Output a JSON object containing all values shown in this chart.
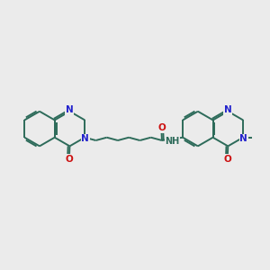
{
  "bg_color": "#ebebeb",
  "bond_color": "#2d6b5a",
  "N_color": "#2222cc",
  "O_color": "#cc1111",
  "NH_color": "#2d6b5a",
  "lw": 1.4,
  "dbo": 0.018,
  "s": 0.195,
  "figsize": [
    3.0,
    3.0
  ],
  "dpi": 100,
  "xlim": [
    -1.5,
    1.5
  ],
  "ylim": [
    -0.65,
    0.65
  ]
}
